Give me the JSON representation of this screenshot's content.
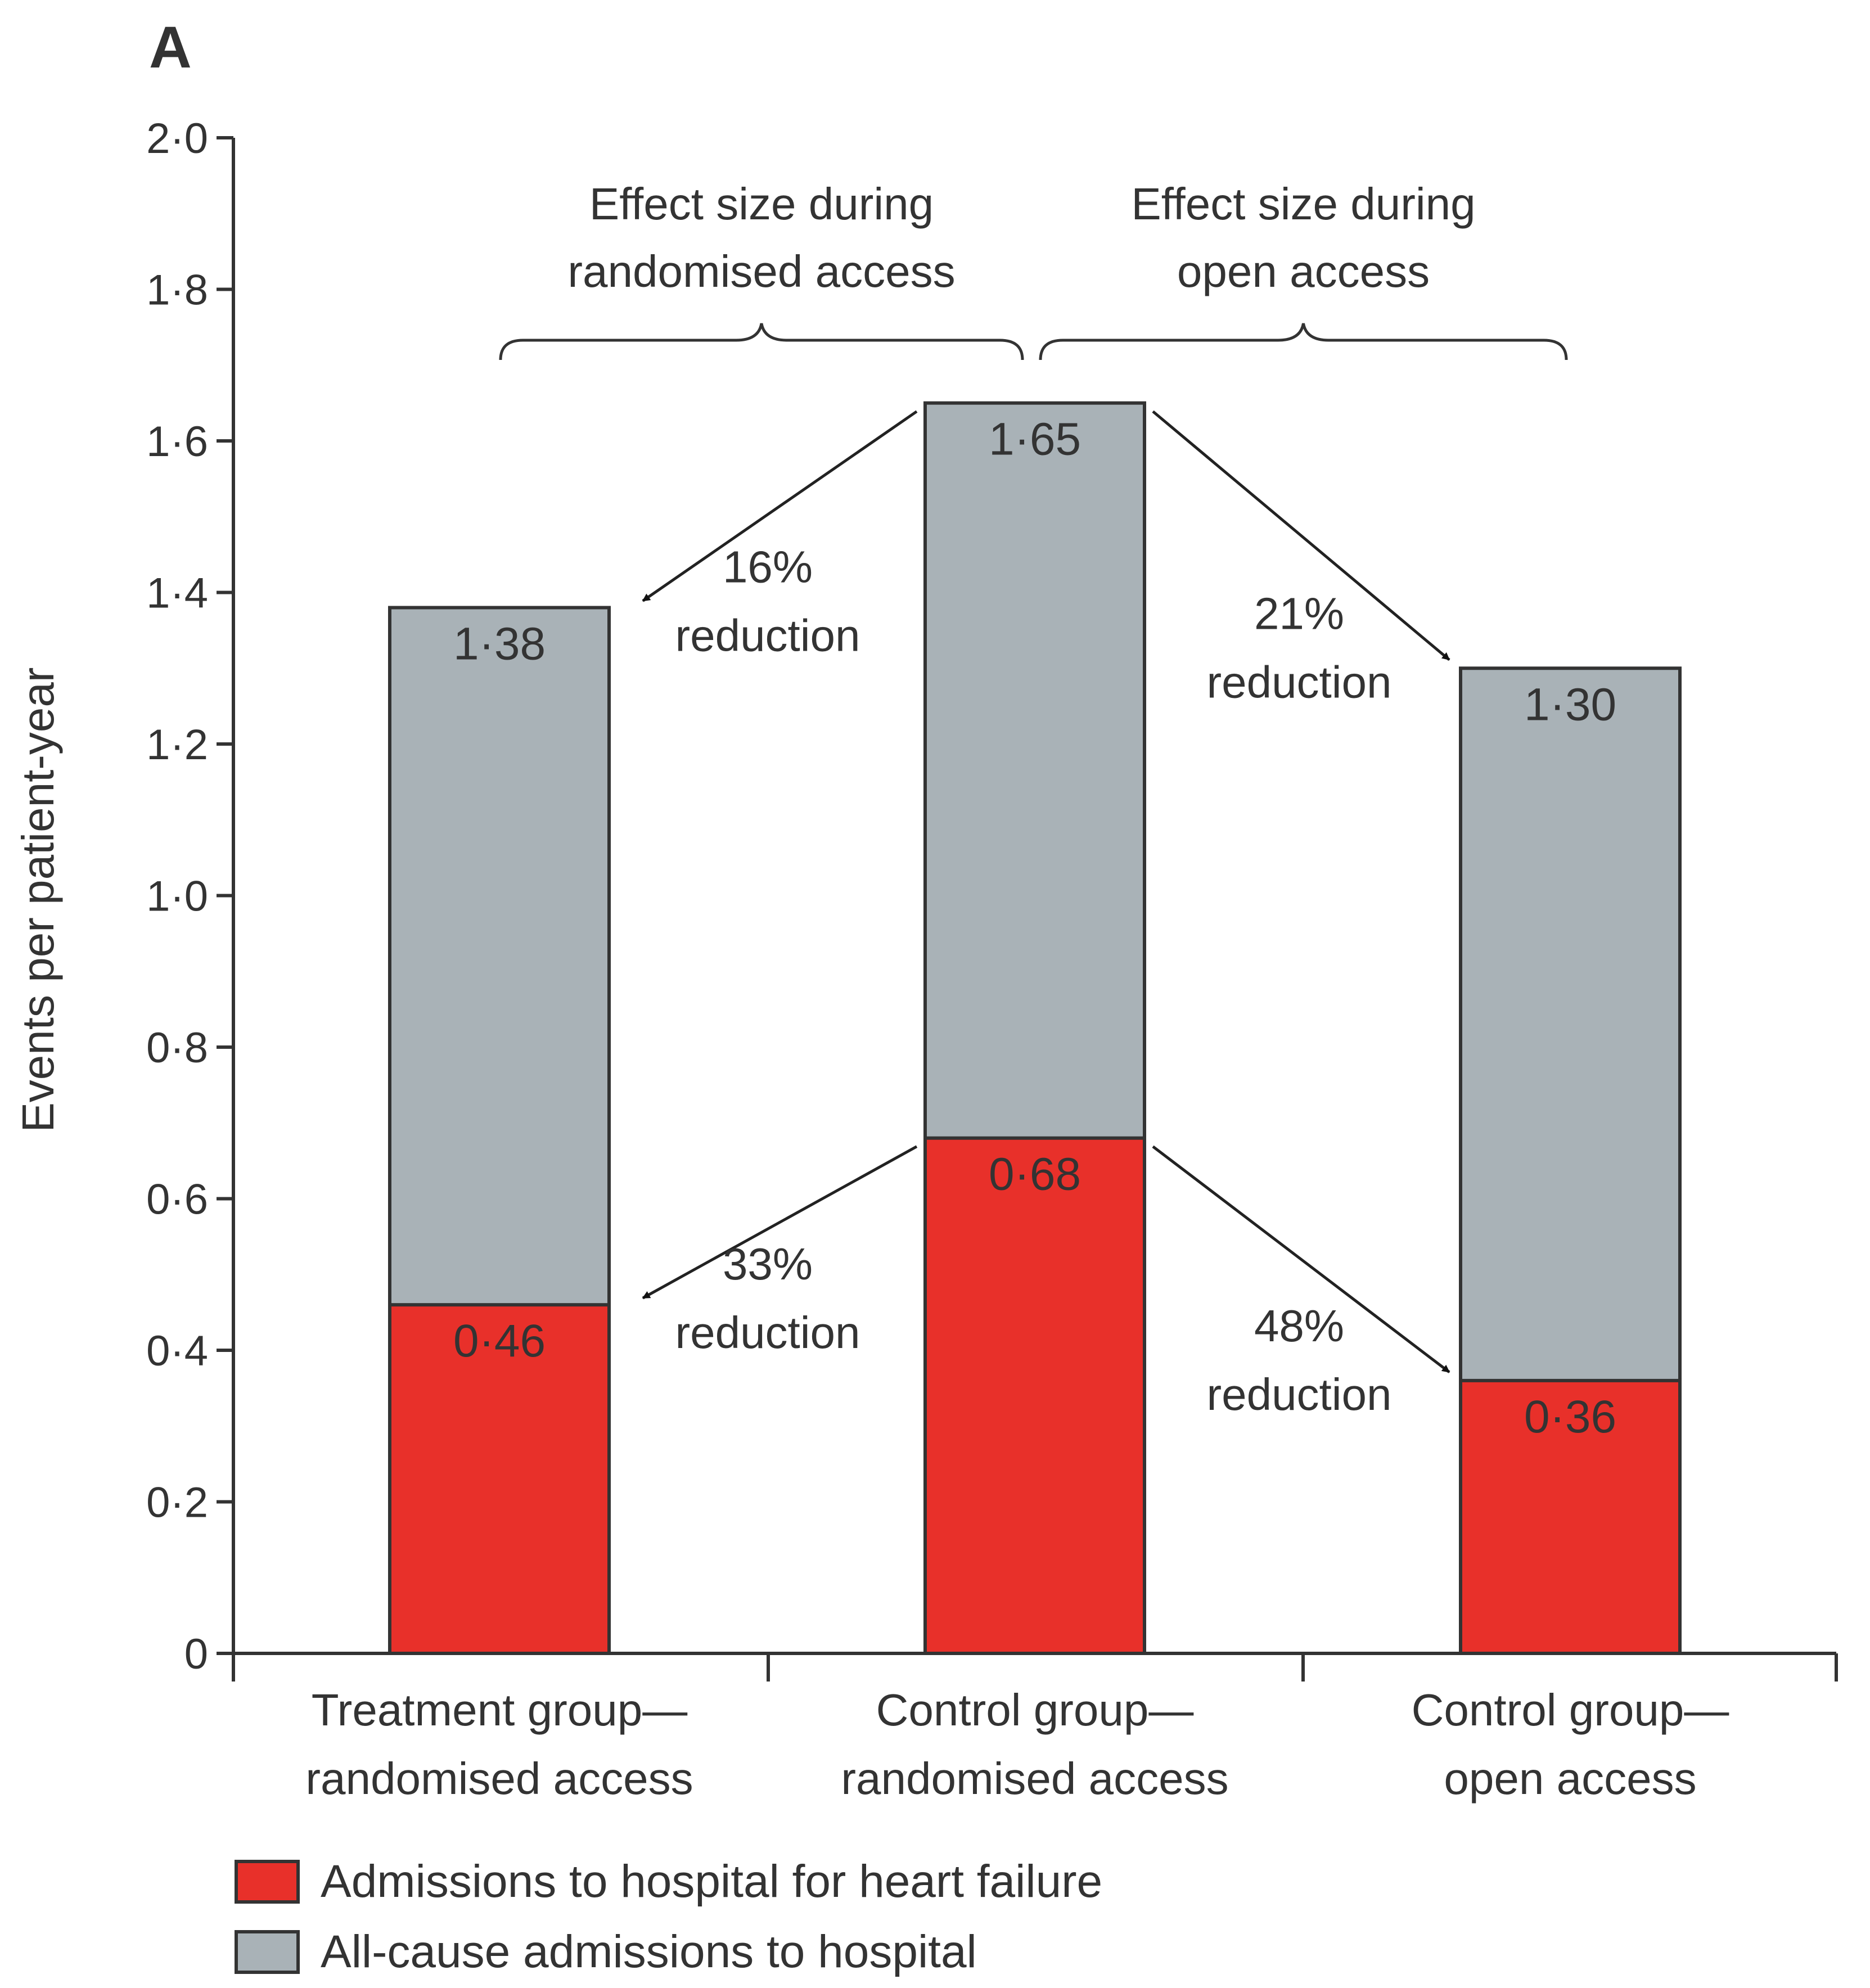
{
  "panel_label": "A",
  "colors": {
    "hf": "#e8302a",
    "allcause": "#a9b2b7",
    "axis": "#333333",
    "label_on_bar": "#ffffff"
  },
  "chart_data": {
    "type": "bar",
    "stacked": "overlay",
    "title": "",
    "xlabel": "",
    "ylabel": "Events per patient-year",
    "ylim": [
      0,
      2.0
    ],
    "yticks": [
      {
        "value": 0,
        "label": "0"
      },
      {
        "value": 0.2,
        "label": "0·2"
      },
      {
        "value": 0.4,
        "label": "0·4"
      },
      {
        "value": 0.6,
        "label": "0·6"
      },
      {
        "value": 0.8,
        "label": "0·8"
      },
      {
        "value": 1.0,
        "label": "1·0"
      },
      {
        "value": 1.2,
        "label": "1·2"
      },
      {
        "value": 1.4,
        "label": "1·4"
      },
      {
        "value": 1.6,
        "label": "1·6"
      },
      {
        "value": 1.8,
        "label": "1·8"
      },
      {
        "value": 2.0,
        "label": "2·0"
      }
    ],
    "categories": [
      {
        "line1": "Treatment group—",
        "line2": "randomised access"
      },
      {
        "line1": "Control group—",
        "line2": "randomised access"
      },
      {
        "line1": "Control group—",
        "line2": "open access"
      }
    ],
    "series": [
      {
        "name": "All-cause admissions to hospital",
        "values": [
          1.38,
          1.65,
          1.3
        ],
        "labels": [
          "1·38",
          "1·65",
          "1·30"
        ]
      },
      {
        "name": "Admissions to hospital for heart failure",
        "values": [
          0.46,
          0.68,
          0.36
        ],
        "labels": [
          "0·46",
          "0·68",
          "0·36"
        ]
      }
    ],
    "legend": [
      {
        "label": "Admissions to hospital for heart failure",
        "series": 1
      },
      {
        "label": "All-cause admissions to hospital",
        "series": 0
      }
    ],
    "legend_position": "bottom-left",
    "annotations": [
      {
        "from_bar": 1,
        "to_bar": 0,
        "series": 0,
        "pct": "16%",
        "text": "reduction"
      },
      {
        "from_bar": 1,
        "to_bar": 2,
        "series": 0,
        "pct": "21%",
        "text": "reduction"
      },
      {
        "from_bar": 1,
        "to_bar": 0,
        "series": 1,
        "pct": "33%",
        "text": "reduction"
      },
      {
        "from_bar": 1,
        "to_bar": 2,
        "series": 1,
        "pct": "48%",
        "text": "reduction"
      }
    ],
    "braces": [
      {
        "line1": "Effect size during",
        "line2": "randomised access"
      },
      {
        "line1": "Effect size during",
        "line2": "open access"
      }
    ]
  }
}
